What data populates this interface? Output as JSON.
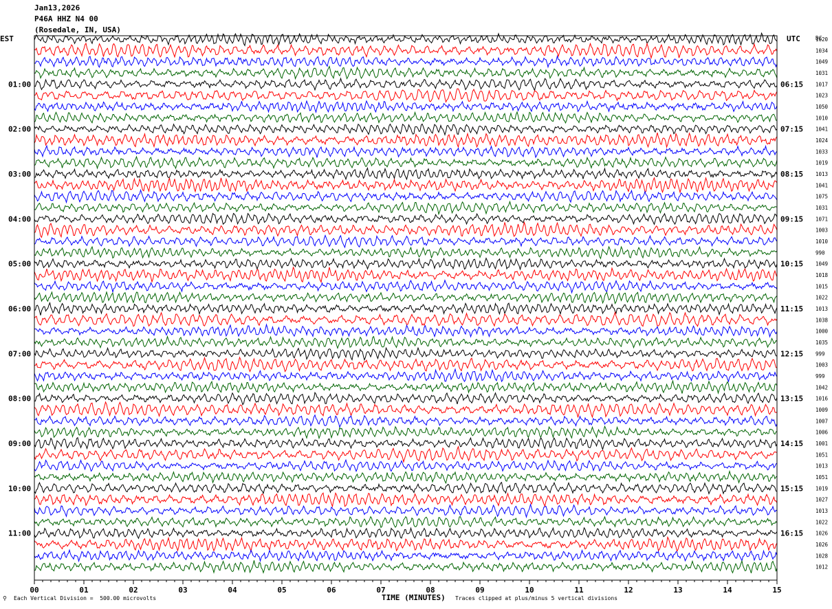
{
  "header": {
    "date": "Jan13,2026",
    "station": "P46A HHZ N4 00",
    "location": "(Rosedale, IN, USA)"
  },
  "labels": {
    "left_tz": "EST",
    "right_tz": "UTC",
    "dc_header": "DC",
    "xlabel": "TIME (MINUTES)",
    "scale_note": "Each Vertical Division =  500.00 microvolts",
    "clip_note": "Traces clipped at plus/minus 5 vertical divisions"
  },
  "colors": {
    "trace_cycle": [
      "#000000",
      "#ff0000",
      "#0000ff",
      "#006400"
    ],
    "axis": "#000000"
  },
  "chart_data": {
    "type": "line",
    "title": "P46A HHZ N4 00",
    "xlabel": "TIME (MINUTES)",
    "xlim": [
      0,
      15
    ],
    "x_ticks": [
      "00",
      "01",
      "02",
      "03",
      "04",
      "05",
      "06",
      "07",
      "08",
      "09",
      "10",
      "11",
      "12",
      "13",
      "14",
      "15"
    ],
    "rows": 48,
    "row_minutes": 15,
    "left_time_labels": [
      "01:00",
      "02:00",
      "03:00",
      "04:00",
      "05:00",
      "06:00",
      "07:00",
      "08:00",
      "09:00",
      "10:00",
      "11:00"
    ],
    "right_time_labels": [
      "06:15",
      "07:15",
      "08:15",
      "09:15",
      "10:15",
      "11:15",
      "12:15",
      "13:15",
      "14:15",
      "15:15",
      "16:15"
    ],
    "dc_offsets": [
      "1020",
      "1034",
      "1049",
      "1031",
      "1017",
      "1023",
      "1050",
      "1010",
      "1041",
      "1024",
      "1033",
      "1019",
      "1013",
      "1041",
      "1075",
      "1031",
      "1071",
      "1003",
      "1010",
      "990",
      "1049",
      "1018",
      "1015",
      "1022",
      "1013",
      "1038",
      "1000",
      "1035",
      "999",
      "1003",
      "999",
      "1042",
      "1016",
      "1009",
      "1007",
      "1006",
      "1001",
      "1051",
      "1013",
      "1051",
      "1019",
      "1027",
      "1013",
      "1022",
      "1026",
      "1026",
      "1028",
      "1012"
    ]
  }
}
